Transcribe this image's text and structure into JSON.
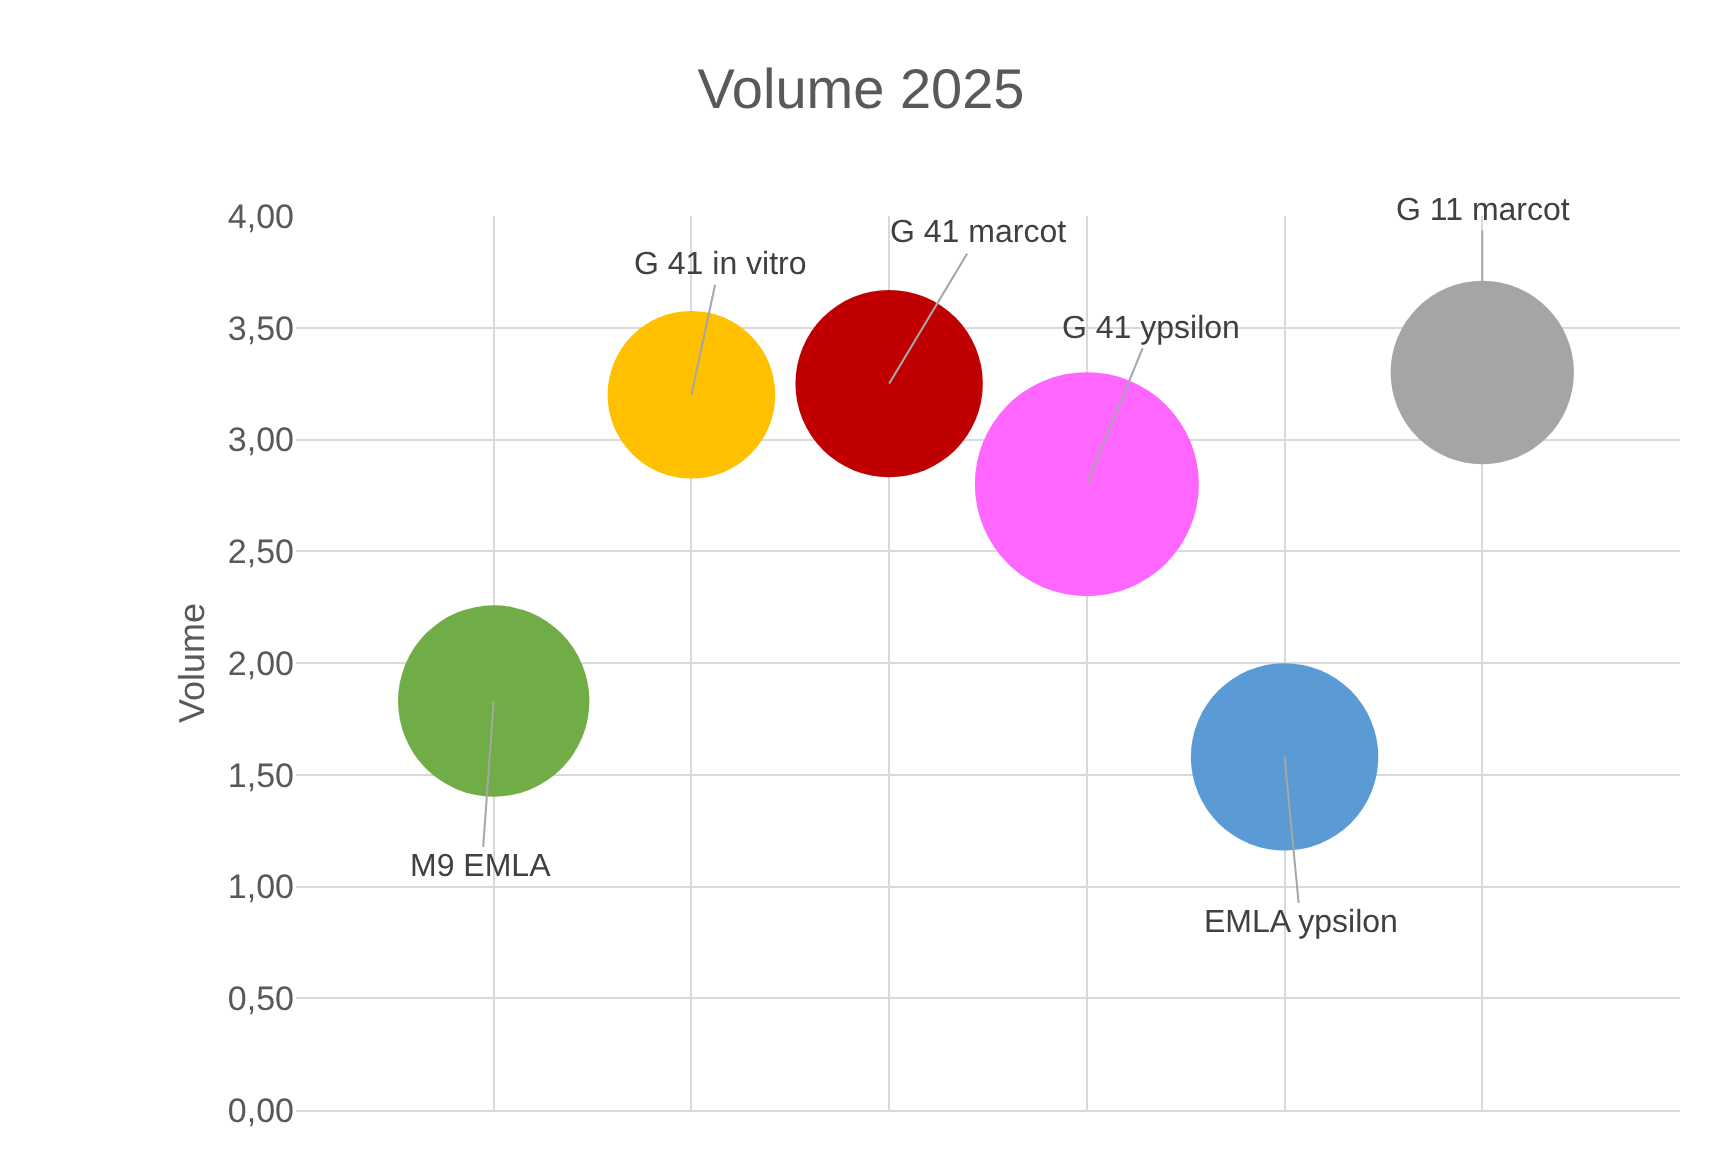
{
  "chart_data": {
    "type": "bubble",
    "title": "Volume 2025",
    "ylabel": "Volume",
    "categories": [
      null,
      null,
      null,
      null,
      null,
      null
    ],
    "ylim": [
      0,
      4
    ],
    "yticks": [
      {
        "value": 0,
        "label": "0,00"
      },
      {
        "value": 0.5,
        "label": "0,50"
      },
      {
        "value": 1,
        "label": "1,00"
      },
      {
        "value": 1.5,
        "label": "1,50"
      },
      {
        "value": 2,
        "label": "2,00"
      },
      {
        "value": 2.5,
        "label": "2,50"
      },
      {
        "value": 3,
        "label": "3,00"
      },
      {
        "value": 3.5,
        "label": "3,50"
      },
      {
        "value": 4,
        "label": "4,00"
      }
    ],
    "grid": true,
    "legend": false,
    "series": [
      {
        "name": "M9 EMLA",
        "color": "#70ad47",
        "values": [
          1.83,
          null,
          null,
          null,
          null,
          null
        ],
        "sizes": [
          0.73,
          null,
          null,
          null,
          null,
          null
        ]
      },
      {
        "name": "G 41 in vitro",
        "color": "#ffc000",
        "values": [
          null,
          3.2,
          null,
          null,
          null,
          null
        ],
        "sizes": [
          null,
          0.56,
          null,
          null,
          null,
          null
        ]
      },
      {
        "name": "G 41 marcot",
        "color": "#c00000",
        "values": [
          null,
          null,
          3.25,
          null,
          null,
          null
        ],
        "sizes": [
          null,
          null,
          0.7,
          null,
          null,
          null
        ]
      },
      {
        "name": "G 41 ypsilon",
        "color": "#ff66ff",
        "values": [
          null,
          null,
          null,
          2.8,
          null,
          null
        ],
        "sizes": [
          null,
          null,
          null,
          1,
          null,
          null
        ]
      },
      {
        "name": "EMLA ypsilon",
        "color": "#5b9bd5",
        "values": [
          null,
          null,
          null,
          null,
          1.58,
          null
        ],
        "sizes": [
          null,
          null,
          null,
          null,
          0.7,
          null
        ]
      },
      {
        "name": "G 11 marcot",
        "color": "#a5a5a5",
        "values": [
          null,
          null,
          null,
          null,
          null,
          3.3
        ],
        "sizes": [
          null,
          null,
          null,
          null,
          null,
          0.67
        ]
      }
    ]
  }
}
